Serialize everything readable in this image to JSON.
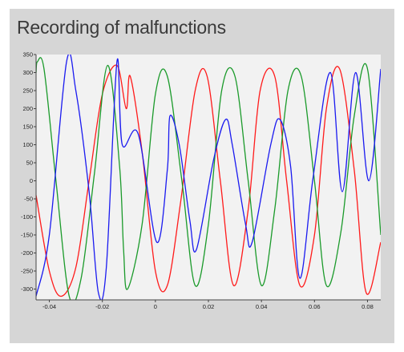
{
  "panel": {
    "title": "Recording of malfunctions"
  },
  "colors": {
    "panel_bg": "#d6d6d6",
    "plot_bg": "#f2f2f2",
    "axis": "#444444",
    "red": "#ff1a1a",
    "green": "#1a9a2a",
    "blue": "#1a1af0"
  },
  "chart_data": {
    "type": "line",
    "title": "",
    "xlabel": "",
    "ylabel": "",
    "xlim": [
      -0.045,
      0.085
    ],
    "ylim": [
      -330,
      350
    ],
    "grid": false,
    "x_ticks": [
      -0.04,
      -0.02,
      0,
      0.02,
      0.04,
      0.06,
      0.08
    ],
    "x_tick_labels": [
      "-0.04",
      "-0.02",
      "0",
      "0.02",
      "0.04",
      "0.06",
      "0.08"
    ],
    "y_ticks": [
      350,
      300,
      250,
      200,
      150,
      100,
      50,
      0,
      -50,
      -100,
      -150,
      -200,
      -250,
      -300
    ],
    "y_tick_labels": [
      "350",
      "300",
      "250",
      "200",
      "150",
      "100",
      "50",
      "0",
      "-50",
      "-100",
      "-150",
      "-200",
      "-250",
      "-300"
    ],
    "series": [
      {
        "color": "#ff1a1a",
        "x": [
          -0.045,
          -0.04,
          -0.0355,
          -0.03,
          -0.025,
          -0.02,
          -0.0145,
          -0.011,
          -0.0095,
          -0.005,
          0.0,
          0.0045,
          0.0095,
          0.015,
          0.0195,
          0.0245,
          0.0295,
          0.035,
          0.0395,
          0.045,
          0.0495,
          0.0545,
          0.06,
          0.0645,
          0.0695,
          0.075,
          0.0795,
          0.085
        ],
        "y": [
          -40,
          -250,
          -320,
          -240,
          0,
          240,
          320,
          200,
          290,
          80,
          -250,
          -290,
          -60,
          250,
          290,
          0,
          -290,
          -80,
          250,
          290,
          0,
          -290,
          -150,
          200,
          310,
          30,
          -310,
          -170
        ]
      },
      {
        "color": "#1a9a2a",
        "x": [
          -0.045,
          -0.0445,
          -0.042,
          -0.0375,
          -0.0325,
          -0.028,
          -0.023,
          -0.018,
          -0.0135,
          -0.012,
          -0.0105,
          -0.005,
          0.0,
          0.0045,
          0.01,
          0.015,
          0.02,
          0.025,
          0.03,
          0.035,
          0.04,
          0.045,
          0.05,
          0.055,
          0.06,
          0.0645,
          0.07,
          0.075,
          0.08,
          0.085
        ],
        "y": [
          300,
          330,
          310,
          0,
          -320,
          -270,
          20,
          320,
          40,
          -190,
          -300,
          -120,
          240,
          290,
          0,
          -290,
          -120,
          250,
          290,
          0,
          -290,
          -80,
          250,
          290,
          0,
          -290,
          -140,
          180,
          310,
          -150
        ]
      },
      {
        "color": "#1a1af0",
        "x": [
          -0.045,
          -0.04,
          -0.0335,
          -0.03,
          -0.025,
          -0.0215,
          -0.0185,
          -0.0145,
          -0.0125,
          -0.0065,
          0.0005,
          0.0045,
          0.0055,
          0.009,
          0.013,
          0.0155,
          0.022,
          0.0265,
          0.029,
          0.034,
          0.0365,
          0.0435,
          0.047,
          0.051,
          0.0545,
          0.0595,
          0.066,
          0.0705,
          0.0755,
          0.0805,
          0.085
        ],
        "y": [
          -320,
          -150,
          330,
          250,
          -30,
          -310,
          -240,
          330,
          100,
          130,
          -170,
          30,
          180,
          100,
          -110,
          -190,
          60,
          170,
          100,
          -120,
          -170,
          100,
          170,
          40,
          -270,
          10,
          300,
          -30,
          300,
          0,
          310
        ]
      }
    ]
  }
}
